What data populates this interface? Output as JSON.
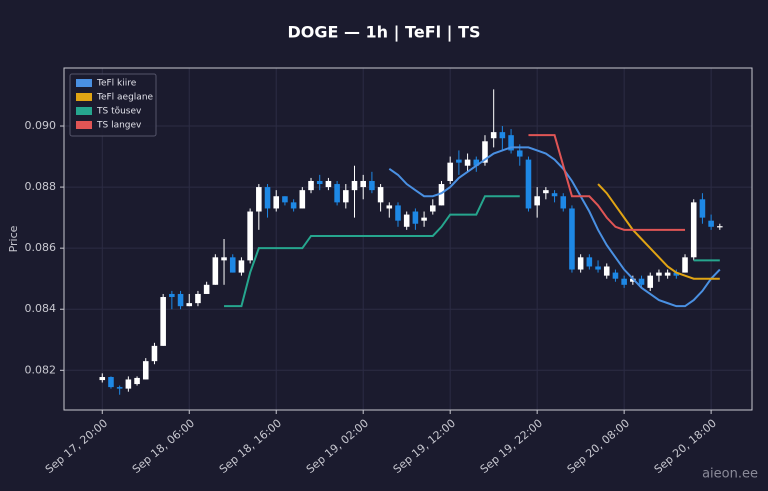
{
  "chart_data": {
    "type": "candlestick",
    "title": "DOGE — 1h  |  TeFl  |  TS",
    "y_label": "Price",
    "watermark": "aieon.ee",
    "x": [
      "Sep 17, 20:00",
      "Sep 17, 21:00",
      "Sep 17, 22:00",
      "Sep 17, 23:00",
      "Sep 18, 00:00",
      "Sep 18, 01:00",
      "Sep 18, 02:00",
      "Sep 18, 03:00",
      "Sep 18, 04:00",
      "Sep 18, 05:00",
      "Sep 18, 06:00",
      "Sep 18, 07:00",
      "Sep 18, 08:00",
      "Sep 18, 09:00",
      "Sep 18, 10:00",
      "Sep 18, 11:00",
      "Sep 18, 12:00",
      "Sep 18, 13:00",
      "Sep 18, 14:00",
      "Sep 18, 15:00",
      "Sep 18, 16:00",
      "Sep 18, 17:00",
      "Sep 18, 18:00",
      "Sep 18, 19:00",
      "Sep 18, 20:00",
      "Sep 18, 21:00",
      "Sep 18, 22:00",
      "Sep 18, 23:00",
      "Sep 19, 00:00",
      "Sep 19, 01:00",
      "Sep 19, 02:00",
      "Sep 19, 03:00",
      "Sep 19, 04:00",
      "Sep 19, 05:00",
      "Sep 19, 06:00",
      "Sep 19, 07:00",
      "Sep 19, 08:00",
      "Sep 19, 09:00",
      "Sep 19, 10:00",
      "Sep 19, 11:00",
      "Sep 19, 12:00",
      "Sep 19, 13:00",
      "Sep 19, 14:00",
      "Sep 19, 15:00",
      "Sep 19, 16:00",
      "Sep 19, 17:00",
      "Sep 19, 18:00",
      "Sep 19, 19:00",
      "Sep 19, 20:00",
      "Sep 19, 21:00",
      "Sep 19, 22:00",
      "Sep 19, 23:00",
      "Sep 20, 00:00",
      "Sep 20, 01:00",
      "Sep 20, 02:00",
      "Sep 20, 03:00",
      "Sep 20, 04:00",
      "Sep 20, 05:00",
      "Sep 20, 06:00",
      "Sep 20, 07:00",
      "Sep 20, 08:00",
      "Sep 20, 09:00",
      "Sep 20, 10:00",
      "Sep 20, 11:00",
      "Sep 20, 12:00",
      "Sep 20, 13:00",
      "Sep 20, 14:00",
      "Sep 20, 15:00",
      "Sep 20, 16:00",
      "Sep 20, 17:00",
      "Sep 20, 18:00",
      "Sep 20, 19:00"
    ],
    "open": [
      0.08168,
      0.08178,
      0.08145,
      0.0814,
      0.08155,
      0.0817,
      0.0823,
      0.0828,
      0.0845,
      0.0845,
      0.0841,
      0.0842,
      0.0845,
      0.0848,
      0.0856,
      0.0857,
      0.0852,
      0.0856,
      0.0872,
      0.088,
      0.0873,
      0.0877,
      0.0875,
      0.0873,
      0.0879,
      0.0882,
      0.088,
      0.0881,
      0.0875,
      0.0879,
      0.088,
      0.0882,
      0.0875,
      0.0873,
      0.0874,
      0.0867,
      0.0872,
      0.0869,
      0.0872,
      0.0874,
      0.0882,
      0.0889,
      0.0887,
      0.0889,
      0.0888,
      0.0896,
      0.0898,
      0.0897,
      0.0892,
      0.0889,
      0.0874,
      0.0878,
      0.0878,
      0.0877,
      0.0873,
      0.0853,
      0.0857,
      0.0854,
      0.0851,
      0.0852,
      0.085,
      0.0849,
      0.085,
      0.0847,
      0.0851,
      0.0851,
      0.0852,
      0.0852,
      0.0857,
      0.0876,
      0.0869,
      0.08668
    ],
    "high": [
      0.0819,
      0.0818,
      0.0815,
      0.0818,
      0.0818,
      0.0824,
      0.0829,
      0.0845,
      0.0846,
      0.0846,
      0.0845,
      0.0846,
      0.0849,
      0.0858,
      0.0863,
      0.0858,
      0.0857,
      0.0873,
      0.0881,
      0.0881,
      0.0879,
      0.0877,
      0.0876,
      0.088,
      0.0883,
      0.0884,
      0.0883,
      0.0882,
      0.0881,
      0.0887,
      0.0884,
      0.0885,
      0.0881,
      0.0875,
      0.0875,
      0.0872,
      0.0873,
      0.0872,
      0.0876,
      0.0882,
      0.089,
      0.0892,
      0.0891,
      0.089,
      0.0897,
      0.0912,
      0.09,
      0.0899,
      0.0894,
      0.089,
      0.088,
      0.088,
      0.0879,
      0.0878,
      0.0874,
      0.0858,
      0.0858,
      0.0856,
      0.0855,
      0.0853,
      0.0851,
      0.0851,
      0.0851,
      0.0852,
      0.0853,
      0.0853,
      0.0853,
      0.0858,
      0.0876,
      0.0878,
      0.0871,
      0.0868
    ],
    "low": [
      0.0816,
      0.0814,
      0.0812,
      0.0813,
      0.0815,
      0.0817,
      0.0822,
      0.0828,
      0.084,
      0.084,
      0.0841,
      0.0841,
      0.0845,
      0.0848,
      0.0848,
      0.0852,
      0.0851,
      0.0855,
      0.0866,
      0.087,
      0.0872,
      0.0874,
      0.0872,
      0.0873,
      0.0878,
      0.0879,
      0.0879,
      0.0874,
      0.0873,
      0.087,
      0.0876,
      0.0878,
      0.0872,
      0.087,
      0.0867,
      0.0866,
      0.0866,
      0.0867,
      0.0871,
      0.0874,
      0.0881,
      0.0884,
      0.0885,
      0.0885,
      0.0887,
      0.0893,
      0.0892,
      0.0891,
      0.0887,
      0.0872,
      0.087,
      0.0876,
      0.0875,
      0.0872,
      0.0852,
      0.0852,
      0.0853,
      0.0852,
      0.085,
      0.0849,
      0.0847,
      0.0848,
      0.0847,
      0.0846,
      0.0849,
      0.085,
      0.085,
      0.0852,
      0.0856,
      0.0868,
      0.0866,
      0.0866
    ],
    "close": [
      0.08178,
      0.08145,
      0.0814,
      0.0817,
      0.08175,
      0.0823,
      0.0828,
      0.0844,
      0.0844,
      0.0841,
      0.0842,
      0.0845,
      0.0848,
      0.0857,
      0.0857,
      0.0852,
      0.0856,
      0.0872,
      0.088,
      0.0873,
      0.0877,
      0.0875,
      0.0873,
      0.0879,
      0.0882,
      0.0881,
      0.0882,
      0.0875,
      0.0879,
      0.0882,
      0.0882,
      0.0879,
      0.088,
      0.0874,
      0.0869,
      0.0871,
      0.0868,
      0.087,
      0.0874,
      0.0881,
      0.0888,
      0.0888,
      0.0889,
      0.0887,
      0.0895,
      0.0898,
      0.0896,
      0.0892,
      0.089,
      0.0873,
      0.0877,
      0.0879,
      0.0877,
      0.0873,
      0.0853,
      0.0857,
      0.0854,
      0.0853,
      0.0854,
      0.085,
      0.0848,
      0.085,
      0.0848,
      0.0851,
      0.0852,
      0.0852,
      0.0851,
      0.0857,
      0.0875,
      0.087,
      0.0867,
      0.08672
    ],
    "up_color": "#ffffff",
    "down_color": "#1e88e5",
    "series": [
      {
        "name": "TeFl kiire",
        "color": "#4a90e2",
        "values": [
          null,
          null,
          null,
          null,
          null,
          null,
          null,
          null,
          null,
          null,
          null,
          null,
          null,
          null,
          null,
          null,
          null,
          null,
          null,
          null,
          null,
          null,
          null,
          null,
          null,
          null,
          null,
          null,
          null,
          null,
          null,
          null,
          null,
          0.0886,
          0.0884,
          0.0881,
          0.0879,
          0.0877,
          0.0877,
          0.0878,
          0.088,
          0.0883,
          0.0885,
          0.0887,
          0.0889,
          0.0891,
          0.0892,
          0.0893,
          0.0893,
          0.0893,
          0.0892,
          0.0891,
          0.0889,
          0.0886,
          0.0882,
          0.0877,
          0.0872,
          0.0866,
          0.0861,
          0.0857,
          0.0853,
          0.085,
          0.0847,
          0.0845,
          0.0843,
          0.0842,
          0.0841,
          0.0841,
          0.0843,
          0.0846,
          0.085,
          0.0853
        ]
      },
      {
        "name": "TeFl aeglane",
        "color": "#e0a414",
        "values": [
          null,
          null,
          null,
          null,
          null,
          null,
          null,
          null,
          null,
          null,
          null,
          null,
          null,
          null,
          null,
          null,
          null,
          null,
          null,
          null,
          null,
          null,
          null,
          null,
          null,
          null,
          null,
          null,
          null,
          null,
          null,
          null,
          null,
          null,
          null,
          null,
          null,
          null,
          null,
          null,
          null,
          null,
          null,
          null,
          null,
          null,
          null,
          null,
          null,
          null,
          null,
          null,
          null,
          null,
          null,
          null,
          null,
          0.0881,
          0.0878,
          0.0874,
          0.087,
          0.0866,
          0.0863,
          0.086,
          0.0857,
          0.0854,
          0.0852,
          0.0851,
          0.085,
          0.085,
          0.085,
          0.085
        ]
      },
      {
        "name": "TS tõusev",
        "color": "#26a68e",
        "values": [
          null,
          null,
          null,
          null,
          null,
          null,
          null,
          null,
          null,
          null,
          null,
          null,
          null,
          null,
          0.0841,
          0.0841,
          0.0841,
          0.0852,
          0.086,
          0.086,
          0.086,
          0.086,
          0.086,
          0.086,
          0.0864,
          0.0864,
          0.0864,
          0.0864,
          0.0864,
          0.0864,
          0.0864,
          0.0864,
          0.0864,
          0.0864,
          0.0864,
          0.0864,
          0.0864,
          0.0864,
          0.0864,
          0.0867,
          0.0871,
          0.0871,
          0.0871,
          0.0871,
          0.0877,
          0.0877,
          0.0877,
          0.0877,
          0.0877,
          null,
          null,
          null,
          null,
          null,
          null,
          null,
          null,
          null,
          null,
          null,
          null,
          null,
          null,
          null,
          null,
          null,
          null,
          null,
          0.0856,
          0.0856,
          0.0856,
          0.0856
        ]
      },
      {
        "name": "TS langev",
        "color": "#e05555",
        "values": [
          null,
          null,
          null,
          null,
          null,
          null,
          null,
          null,
          null,
          null,
          null,
          null,
          null,
          null,
          null,
          null,
          null,
          null,
          null,
          null,
          null,
          null,
          null,
          null,
          null,
          null,
          null,
          null,
          null,
          null,
          null,
          null,
          null,
          null,
          null,
          null,
          null,
          null,
          null,
          null,
          null,
          null,
          null,
          null,
          null,
          null,
          null,
          null,
          null,
          0.0897,
          0.0897,
          0.0897,
          0.0897,
          0.0887,
          0.0877,
          0.0877,
          0.0877,
          0.0874,
          0.087,
          0.0867,
          0.0866,
          0.0866,
          0.0866,
          0.0866,
          0.0866,
          0.0866,
          0.0866,
          0.0866,
          null,
          null,
          null,
          null
        ]
      }
    ],
    "legend": "upper left",
    "grid": true,
    "ylim": [
      0.0807,
      0.0919
    ],
    "yticks": [
      0.082,
      0.084,
      0.086,
      0.088,
      {
        "value": 0.09,
        "label": "0.090"
      }
    ],
    "xticks": [
      "Sep 17, 20:00",
      "Sep 18, 06:00",
      "Sep 18, 16:00",
      "Sep 19, 02:00",
      "Sep 19, 12:00",
      "Sep 19, 22:00",
      "Sep 20, 08:00",
      "Sep 20, 18:00"
    ]
  }
}
